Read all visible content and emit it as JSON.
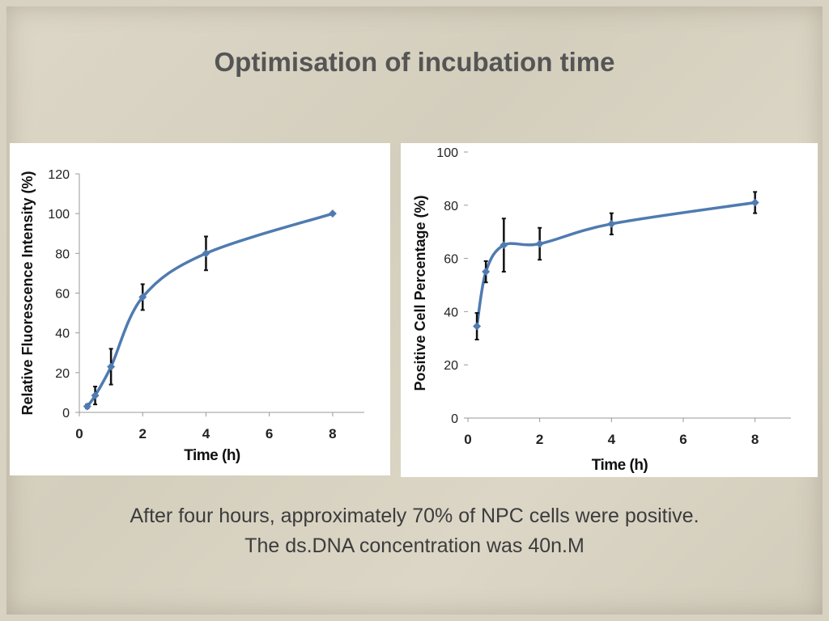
{
  "title": "Optimisation of incubation time",
  "caption": {
    "line1": "After four hours, approximately 70% of NPC cells were positive.",
    "line2": "The ds.DNA concentration was 40n.M"
  },
  "colors": {
    "series": "#4f7bb0",
    "error_bar": "#111111",
    "background": "#d8d2c2"
  },
  "chart_data": [
    {
      "type": "line",
      "xlabel": "Time (h)",
      "ylabel": "Relative Fluorescence Intensity (%)",
      "xlim": [
        0,
        9
      ],
      "ylim": [
        0,
        120
      ],
      "xticks": [
        0,
        2,
        4,
        6,
        8
      ],
      "yticks": [
        0,
        20,
        40,
        60,
        80,
        100,
        120
      ],
      "smoothed": true,
      "markers": "diamond",
      "grid": false,
      "x": [
        0.25,
        0.5,
        1,
        2,
        4,
        8
      ],
      "y": [
        3,
        8.5,
        23,
        58,
        80,
        100
      ],
      "error": [
        1,
        4.5,
        9,
        6.5,
        8.5,
        0
      ]
    },
    {
      "type": "line",
      "xlabel": "Time (h)",
      "ylabel": "Positive Cell Percentage (%)",
      "xlim": [
        0,
        9
      ],
      "ylim": [
        0,
        100
      ],
      "xticks": [
        0,
        2,
        4,
        6,
        8
      ],
      "yticks": [
        0,
        20,
        40,
        60,
        80,
        100
      ],
      "smoothed": true,
      "markers": "diamond",
      "grid": false,
      "x": [
        0.25,
        0.5,
        1,
        2,
        4,
        8
      ],
      "y": [
        34.5,
        55,
        65,
        65.5,
        73,
        81
      ],
      "error": [
        5,
        4,
        10,
        6,
        4,
        4
      ]
    }
  ]
}
